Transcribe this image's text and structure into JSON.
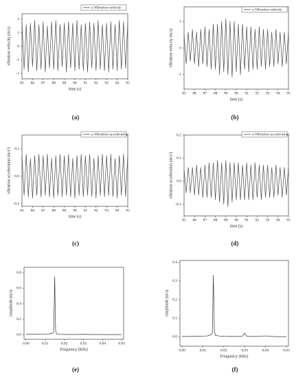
{
  "chart_data": [
    {
      "type": "line",
      "caption": "(a)",
      "xlabel": "time (s)",
      "ylabel": "vibration velocity (m/s)",
      "legend": "upper right",
      "x": [
        85,
        85.2,
        85.4,
        85.6,
        85.8,
        86,
        86.2,
        86.4,
        86.6,
        86.8,
        87,
        87.2,
        87.4,
        87.6,
        87.8,
        88,
        88.2,
        88.4,
        88.6,
        88.8,
        89,
        89.2,
        89.4,
        89.6,
        89.8,
        90,
        90.2,
        90.4,
        90.6,
        90.8,
        91,
        91.2,
        91.4,
        91.6,
        91.8,
        92,
        92.2,
        92.4,
        92.6,
        92.8,
        93,
        93.2,
        93.4,
        93.6,
        93.8,
        94,
        94.2,
        94.4,
        94.6,
        94.8,
        95
      ],
      "series": [
        {
          "name": "x-Vibration velocity",
          "color": "#4a4a4a",
          "values": [
            1.8,
            -1.7,
            1.6,
            -1.9,
            1.7,
            -1.5,
            1.9,
            -1.8,
            1.6,
            -1.7,
            1.8,
            -1.9,
            1.5,
            -1.6,
            1.8,
            -1.7,
            1.9,
            -1.8,
            1.6,
            -1.5,
            1.7,
            -1.9,
            1.8,
            -1.6,
            1.7,
            -1.8,
            1.9,
            -1.7,
            1.6,
            -1.8,
            1.7,
            -1.9,
            1.8,
            -1.6,
            1.7,
            -1.8,
            1.9,
            -1.7,
            1.6,
            -1.8,
            1.7,
            -1.9,
            1.8,
            -1.7,
            1.6,
            -1.8,
            1.9,
            -1.7,
            1.8,
            -1.6,
            1.7
          ]
        }
      ],
      "xlim": [
        85,
        95
      ],
      "xticks": [
        85,
        86,
        87,
        88,
        89,
        90,
        91,
        92,
        93,
        94,
        95
      ],
      "ylim": [
        -2.4,
        2.4
      ],
      "yticks": [
        2,
        1,
        0,
        -1,
        -2
      ]
    },
    {
      "type": "line",
      "caption": "(b)",
      "xlabel": "time (s)",
      "ylabel": "vibration velocity (m/s)",
      "legend": "upper right",
      "x": [
        85,
        85.2,
        85.4,
        85.6,
        85.8,
        86,
        86.2,
        86.4,
        86.6,
        86.8,
        87,
        87.2,
        87.4,
        87.6,
        87.8,
        88,
        88.2,
        88.4,
        88.6,
        88.8,
        89,
        89.2,
        89.4,
        89.6,
        89.8,
        90,
        90.2,
        90.4,
        90.6,
        90.8,
        91,
        91.2,
        91.4,
        91.6,
        91.8,
        92,
        92.2,
        92.4,
        92.6,
        92.8,
        93,
        93.2,
        93.4,
        93.6,
        93.8,
        94,
        94.2,
        94.4,
        94.6,
        94.8,
        95
      ],
      "series": [
        {
          "name": "x-Vibration velocity",
          "color": "#4a4a4a",
          "values": [
            0.5,
            -0.6,
            0.6,
            -0.5,
            0.7,
            -0.6,
            0.6,
            -0.7,
            0.7,
            -0.6,
            0.8,
            -0.7,
            0.7,
            -0.8,
            0.9,
            -0.8,
            0.9,
            -1.0,
            1.0,
            -0.9,
            1.1,
            -1.0,
            1.0,
            -1.1,
            1.0,
            -0.9,
            0.9,
            -1.0,
            0.9,
            -0.8,
            0.8,
            -0.9,
            0.8,
            -0.8,
            0.7,
            -0.8,
            0.8,
            -0.7,
            0.7,
            -0.8,
            0.7,
            -0.7,
            0.6,
            -0.7,
            0.7,
            -0.6,
            0.6,
            -0.7,
            0.6,
            -0.6,
            0.6
          ]
        }
      ],
      "xlim": [
        85,
        95
      ],
      "xticks": [
        85,
        86,
        87,
        88,
        89,
        90,
        91,
        92,
        93,
        94,
        95
      ],
      "ylim": [
        -1.55,
        1.55
      ],
      "yticks": [
        1,
        0,
        -1
      ]
    },
    {
      "type": "line",
      "caption": "(c)",
      "xlabel": "time (s)",
      "ylabel": "vibration acceleration (m/s²)",
      "legend": "upper right",
      "x": [
        85,
        85.2,
        85.4,
        85.6,
        85.8,
        86,
        86.2,
        86.4,
        86.6,
        86.8,
        87,
        87.2,
        87.4,
        87.6,
        87.8,
        88,
        88.2,
        88.4,
        88.6,
        88.8,
        89,
        89.2,
        89.4,
        89.6,
        89.8,
        90,
        90.2,
        90.4,
        90.6,
        90.8,
        91,
        91.2,
        91.4,
        91.6,
        91.8,
        92,
        92.2,
        92.4,
        92.6,
        92.8,
        93,
        93.2,
        93.4,
        93.6,
        93.8,
        94,
        94.2,
        94.4,
        94.6,
        94.8,
        95
      ],
      "series": [
        {
          "name": "x-Vibration acceleration",
          "color": "#4a4a4a",
          "values": [
            0.15,
            -0.14,
            0.16,
            -0.15,
            0.13,
            -0.16,
            0.15,
            -0.14,
            0.16,
            -0.15,
            0.15,
            -0.14,
            0.16,
            -0.15,
            0.13,
            -0.16,
            0.15,
            -0.14,
            0.16,
            -0.15,
            0.15,
            -0.14,
            0.16,
            -0.15,
            0.13,
            -0.16,
            0.15,
            -0.14,
            0.16,
            -0.15,
            0.15,
            -0.14,
            0.16,
            -0.15,
            0.13,
            -0.16,
            0.15,
            -0.14,
            0.16,
            -0.15,
            0.15,
            -0.14,
            0.16,
            -0.15,
            0.13,
            -0.16,
            0.15,
            -0.14,
            0.16,
            -0.15,
            0.15
          ]
        }
      ],
      "xlim": [
        85,
        95
      ],
      "xticks": [
        85,
        86,
        87,
        88,
        89,
        90,
        91,
        92,
        93,
        94,
        95
      ],
      "ylim": [
        -0.22,
        0.3
      ],
      "yticks": [
        0.2,
        {
          "value": 0,
          "label": "0.0"
        },
        -0.2
      ]
    },
    {
      "type": "line",
      "caption": "(d)",
      "xlabel": "time (s)",
      "ylabel": "vibration acceleration (m/s²)",
      "legend": "upper right",
      "x": [
        85,
        85.2,
        85.4,
        85.6,
        85.8,
        86,
        86.2,
        86.4,
        86.6,
        86.8,
        87,
        87.2,
        87.4,
        87.6,
        87.8,
        88,
        88.2,
        88.4,
        88.6,
        88.8,
        89,
        89.2,
        89.4,
        89.6,
        89.8,
        90,
        90.2,
        90.4,
        90.6,
        90.8,
        91,
        91.2,
        91.4,
        91.6,
        91.8,
        92,
        92.2,
        92.4,
        92.6,
        92.8,
        93,
        93.2,
        93.4,
        93.6,
        93.8,
        94,
        94.2,
        94.4,
        94.6,
        94.8,
        95
      ],
      "series": [
        {
          "name": "x-Vibration acceleration",
          "color": "#4a4a4a",
          "values": [
            0.05,
            -0.05,
            0.06,
            -0.05,
            0.06,
            -0.06,
            0.07,
            -0.06,
            0.06,
            -0.07,
            0.07,
            -0.07,
            0.08,
            -0.07,
            0.08,
            -0.08,
            0.09,
            -0.09,
            0.08,
            -0.1,
            0.09,
            -0.11,
            0.08,
            -0.09,
            0.08,
            -0.08,
            0.08,
            -0.08,
            0.07,
            -0.08,
            0.08,
            -0.08,
            0.07,
            -0.08,
            0.08,
            -0.07,
            0.07,
            -0.08,
            0.07,
            -0.07,
            0.07,
            -0.07,
            0.06,
            -0.07,
            0.07,
            -0.06,
            0.06,
            -0.07,
            0.06,
            -0.06,
            0.06
          ]
        }
      ],
      "xlim": [
        85,
        95
      ],
      "xticks": [
        85,
        86,
        87,
        88,
        89,
        90,
        91,
        92,
        93,
        94,
        95
      ],
      "ylim": [
        -0.15,
        0.2
      ],
      "yticks": [
        0.2,
        0.1,
        {
          "value": 0,
          "label": "0.0"
        },
        -0.1
      ]
    },
    {
      "type": "line",
      "caption": "(e)",
      "xlabel": "Frequency (kHz)",
      "ylabel": "Amplitude (m/s)",
      "x": [
        0,
        0.002,
        0.005,
        0.008,
        0.01,
        0.012,
        0.013,
        0.014,
        0.0145,
        0.015,
        0.0155,
        0.016,
        0.018,
        0.02,
        0.025,
        0.03,
        0.035,
        0.04,
        0.045,
        0.05
      ],
      "series": [
        {
          "color": "#333333",
          "values": [
            0.003,
            0.004,
            0.005,
            0.006,
            0.008,
            0.01,
            0.015,
            0.02,
            0.03,
            0.75,
            0.05,
            0.01,
            0.004,
            0.003,
            0.002,
            0.004,
            0.002,
            0.002,
            0.001,
            0.001
          ]
        }
      ],
      "xlim": [
        -0.001,
        0.051
      ],
      "xticks": [
        {
          "value": 0,
          "label": "0.00"
        },
        0.01,
        0.02,
        0.03,
        0.04,
        0.05
      ],
      "ylim": [
        -0.06,
        0.87
      ],
      "yticks": [
        {
          "value": 0,
          "label": "0.0"
        },
        0.2,
        0.4,
        0.6,
        0.8
      ]
    },
    {
      "type": "line",
      "caption": "(f)",
      "xlabel": "Frequency (kHz)",
      "ylabel": "Amplitude (m/s)",
      "x": [
        0,
        0.002,
        0.005,
        0.008,
        0.01,
        0.012,
        0.013,
        0.014,
        0.0145,
        0.015,
        0.0155,
        0.016,
        0.018,
        0.02,
        0.025,
        0.029,
        0.03,
        0.031,
        0.035,
        0.04,
        0.045,
        0.05
      ],
      "series": [
        {
          "color": "#333333",
          "values": [
            0.002,
            0.002,
            0.003,
            0.003,
            0.004,
            0.005,
            0.008,
            0.012,
            0.02,
            0.33,
            0.03,
            0.008,
            0.004,
            0.003,
            0.002,
            0.003,
            0.02,
            0.003,
            0.002,
            0.005,
            0.001,
            0.001
          ]
        }
      ],
      "xlim": [
        -0.001,
        0.051
      ],
      "xticks": [
        {
          "value": 0,
          "label": "0.00"
        },
        0.01,
        0.02,
        0.03,
        0.04,
        0.05
      ],
      "ylim": [
        -0.05,
        0.41
      ],
      "yticks": [
        {
          "value": 0,
          "label": "0.0"
        },
        0.1,
        0.2,
        0.3,
        0.4
      ]
    }
  ]
}
